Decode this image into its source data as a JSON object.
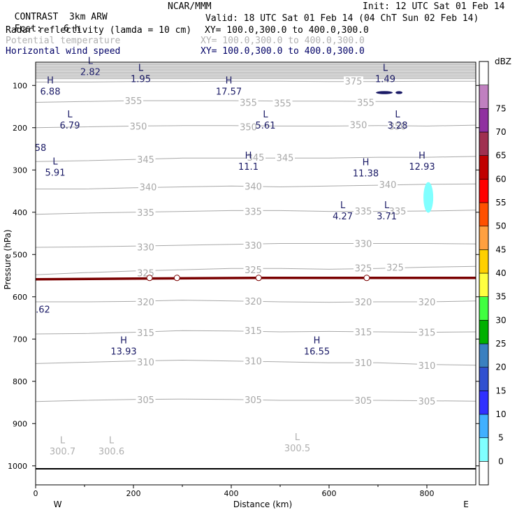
{
  "header": {
    "project": "CONTRAST",
    "model": "3km ARW",
    "org": "NCAR/MMM",
    "init": "Init: 12 UTC Sat 01 Feb 14",
    "fcst_label": "Fcst:",
    "fcst_value": "6 h",
    "valid": "Valid: 18 UTC Sat 01 Feb 14 (04 ChT Sun 02 Feb 14)"
  },
  "fields": [
    {
      "name": "Radar reflectivity (lamda = 10 cm)",
      "xy": "XY= 100.0,300.0 to 400.0,300.0"
    },
    {
      "name": "Potential temperature",
      "xy": "XY= 100.0,300.0 to 400.0,300.0"
    },
    {
      "name": "Horizontal wind speed",
      "xy": "XY= 100.0,300.0 to 400.0,300.0"
    }
  ],
  "colors": {
    "theta": "#a8a8a8",
    "wind": "#1a1a66",
    "tropopause": "#7a0000",
    "cyan": "#80ffff"
  },
  "chart_data": {
    "type": "cross-section",
    "xlabel": "Distance (km)",
    "ylabel": "Pressure (hPa)",
    "xlim": [
      0,
      900
    ],
    "ylim": [
      1045,
      45
    ],
    "x_ticks": [
      0,
      200,
      400,
      600,
      800
    ],
    "y_ticks": [
      100,
      200,
      300,
      400,
      500,
      600,
      700,
      800,
      900,
      1000
    ],
    "left_end": "W",
    "right_end": "E",
    "surface_pressure": 1007,
    "tropopause_pressure": 557,
    "theta_contours": [
      {
        "value": 305,
        "p": [
          848,
          845,
          843,
          842,
          843,
          845,
          845,
          845,
          846,
          847
        ]
      },
      {
        "value": 310,
        "p": [
          758,
          755,
          752,
          750,
          752,
          754,
          756,
          756,
          760,
          762
        ]
      },
      {
        "value": 315,
        "p": [
          688,
          687,
          684,
          680,
          681,
          683,
          682,
          683,
          684,
          683
        ]
      },
      {
        "value": 320,
        "p": [
          612,
          612,
          611,
          608,
          610,
          612,
          613,
          612,
          612,
          610
        ]
      },
      {
        "value": 325,
        "p": [
          548,
          543,
          539,
          536,
          533,
          533,
          535,
          533,
          530,
          528
        ]
      },
      {
        "value": 330,
        "p": [
          483,
          482,
          480,
          478,
          476,
          474,
          474,
          474,
          474,
          475
        ]
      },
      {
        "value": 335,
        "p": [
          405,
          402,
          400,
          398,
          396,
          396,
          398,
          398,
          397,
          395
        ]
      },
      {
        "value": 340,
        "p": [
          345,
          345,
          342,
          340,
          338,
          340,
          338,
          336,
          334,
          333
        ]
      },
      {
        "value": 345,
        "p": [
          280,
          278,
          275,
          272,
          272,
          272,
          272,
          270,
          270,
          268
        ]
      },
      {
        "value": 350,
        "p": [
          200,
          198,
          196,
          195,
          195,
          196,
          196,
          195,
          196,
          194
        ]
      },
      {
        "value": 355,
        "p": [
          140,
          138,
          136,
          136,
          136,
          137,
          137,
          138,
          138,
          139
        ]
      },
      {
        "value": 375,
        "p": [
          92,
          92,
          91,
          91,
          90,
          90,
          91,
          91,
          90,
          90
        ]
      }
    ],
    "theta_labels": [
      {
        "text": "355",
        "x": 200,
        "p": 136
      },
      {
        "text": "355",
        "x": 435,
        "p": 140
      },
      {
        "text": "355",
        "x": 505,
        "p": 142
      },
      {
        "text": "355",
        "x": 675,
        "p": 140
      },
      {
        "text": "350",
        "x": 210,
        "p": 196
      },
      {
        "text": "350",
        "x": 435,
        "p": 198
      },
      {
        "text": "350",
        "x": 660,
        "p": 193
      },
      {
        "text": "350",
        "x": 740,
        "p": 196
      },
      {
        "text": "345",
        "x": 225,
        "p": 275
      },
      {
        "text": "345",
        "x": 450,
        "p": 270
      },
      {
        "text": "345",
        "x": 510,
        "p": 271
      },
      {
        "text": "340",
        "x": 230,
        "p": 340
      },
      {
        "text": "340",
        "x": 445,
        "p": 338
      },
      {
        "text": "340",
        "x": 720,
        "p": 334
      },
      {
        "text": "335",
        "x": 225,
        "p": 400
      },
      {
        "text": "335",
        "x": 445,
        "p": 398
      },
      {
        "text": "335",
        "x": 670,
        "p": 397
      },
      {
        "text": "335",
        "x": 740,
        "p": 397
      },
      {
        "text": "330",
        "x": 225,
        "p": 482
      },
      {
        "text": "330",
        "x": 445,
        "p": 478
      },
      {
        "text": "330",
        "x": 670,
        "p": 474
      },
      {
        "text": "325",
        "x": 225,
        "p": 543
      },
      {
        "text": "325",
        "x": 445,
        "p": 536
      },
      {
        "text": "325",
        "x": 670,
        "p": 532
      },
      {
        "text": "325",
        "x": 735,
        "p": 530
      },
      {
        "text": "320",
        "x": 225,
        "p": 612
      },
      {
        "text": "320",
        "x": 445,
        "p": 610
      },
      {
        "text": "320",
        "x": 670,
        "p": 612
      },
      {
        "text": "320",
        "x": 800,
        "p": 612
      },
      {
        "text": "315",
        "x": 225,
        "p": 685
      },
      {
        "text": "315",
        "x": 445,
        "p": 680
      },
      {
        "text": "315",
        "x": 670,
        "p": 683
      },
      {
        "text": "315",
        "x": 800,
        "p": 684
      },
      {
        "text": "310",
        "x": 225,
        "p": 754
      },
      {
        "text": "310",
        "x": 445,
        "p": 752
      },
      {
        "text": "310",
        "x": 670,
        "p": 756
      },
      {
        "text": "310",
        "x": 800,
        "p": 762
      },
      {
        "text": "305",
        "x": 225,
        "p": 843
      },
      {
        "text": "305",
        "x": 445,
        "p": 843
      },
      {
        "text": "305",
        "x": 670,
        "p": 845
      },
      {
        "text": "305",
        "x": 800,
        "p": 847
      },
      {
        "text": "375",
        "x": 650,
        "p": 90
      }
    ],
    "wind_extrema": [
      {
        "kind": "L",
        "value": "2.82",
        "x": 112,
        "p": 66
      },
      {
        "kind": "L",
        "value": "1.95",
        "x": 215,
        "p": 82
      },
      {
        "kind": "L",
        "value": "1.49",
        "x": 715,
        "p": 82
      },
      {
        "kind": "H",
        "value": "6.88",
        "x": 30,
        "p": 112
      },
      {
        "kind": "H",
        "value": "17.57",
        "x": 395,
        "p": 112
      },
      {
        "kind": "L",
        "value": "6.79",
        "x": 70,
        "p": 192
      },
      {
        "kind": "L",
        "value": "5.61",
        "x": 470,
        "p": 192
      },
      {
        "kind": "L",
        "value": "3.28",
        "x": 740,
        "p": 192
      },
      {
        "kind": "",
        "value": "58",
        "x": 10,
        "p": 245
      },
      {
        "kind": "L",
        "value": "5.91",
        "x": 40,
        "p": 304
      },
      {
        "kind": "H",
        "value": "11.1",
        "x": 435,
        "p": 290
      },
      {
        "kind": "H",
        "value": "11.38",
        "x": 675,
        "p": 305
      },
      {
        "kind": "H",
        "value": "12.93",
        "x": 790,
        "p": 290
      },
      {
        "kind": "L",
        "value": "4.27",
        "x": 628,
        "p": 407
      },
      {
        "kind": "L",
        "value": "3.71",
        "x": 718,
        "p": 407
      },
      {
        "kind": "",
        "value": ".62",
        "x": 15,
        "p": 628
      },
      {
        "kind": "H",
        "value": "13.93",
        "x": 180,
        "p": 727
      },
      {
        "kind": "H",
        "value": "16.55",
        "x": 575,
        "p": 727
      }
    ],
    "theta_minima": [
      {
        "kind": "L",
        "value": "300.7",
        "x": 55,
        "p": 963
      },
      {
        "kind": "L",
        "value": "300.6",
        "x": 155,
        "p": 963
      },
      {
        "kind": "L",
        "value": "300.5",
        "x": 535,
        "p": 956
      }
    ],
    "reflectivity_colorbar": {
      "unit": "dBZ",
      "levels": [
        0,
        5,
        10,
        15,
        20,
        25,
        30,
        35,
        40,
        45,
        50,
        55,
        60,
        65,
        70,
        75
      ],
      "colors": [
        "#ffffff",
        "#80ffff",
        "#40b0ff",
        "#3030ff",
        "#3050d0",
        "#3a80c0",
        "#00b000",
        "#40ff40",
        "#ffff40",
        "#ffd000",
        "#ffa040",
        "#ff5000",
        "#ff0000",
        "#c00000",
        "#a03050",
        "#9030a0",
        "#c080c0",
        "#ffffff"
      ]
    }
  }
}
